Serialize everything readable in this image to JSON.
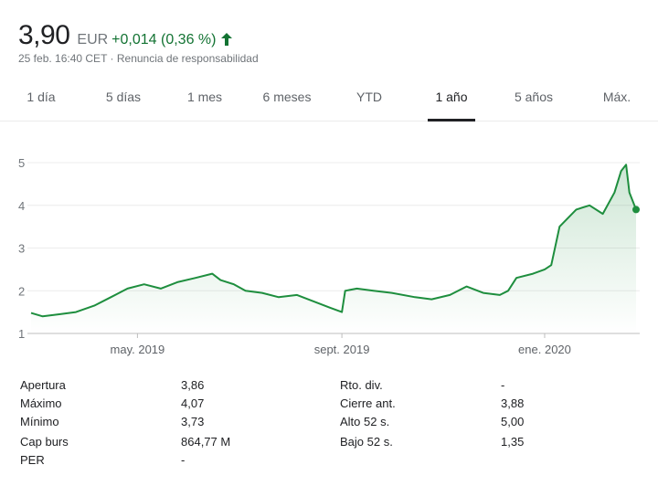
{
  "quote": {
    "price": "3,90",
    "currency": "EUR",
    "change": "+0,014 (0,36 %)",
    "timestamp": "25 feb. 16:40 CET",
    "separator": " · ",
    "disclaimer": "Renuncia de responsabilidad",
    "positive_color": "#137333"
  },
  "tabs": [
    {
      "label": "1 día"
    },
    {
      "label": "5 días"
    },
    {
      "label": "1 mes"
    },
    {
      "label": "6 meses"
    },
    {
      "label": "YTD"
    },
    {
      "label": "1 año",
      "active": true
    },
    {
      "label": "5 años"
    },
    {
      "label": "Máx."
    }
  ],
  "chart_data": {
    "type": "area",
    "ylim": [
      1,
      5
    ],
    "yticks": [
      "1",
      "2",
      "3",
      "4",
      "5"
    ],
    "xtick_labels": [
      "may. 2019",
      "sept. 2019",
      "ene. 2020"
    ],
    "line_color": "#1e8e3e",
    "grid": true,
    "series": [
      {
        "x": [
          "2019-02-26",
          "2019-03-05",
          "2019-03-15",
          "2019-03-25",
          "2019-04-05",
          "2019-04-15",
          "2019-04-25",
          "2019-05-05",
          "2019-05-15",
          "2019-05-25",
          "2019-06-05",
          "2019-06-15",
          "2019-06-20",
          "2019-06-28",
          "2019-07-05",
          "2019-07-15",
          "2019-07-25",
          "2019-08-05",
          "2019-08-15",
          "2019-08-25",
          "2019-09-01",
          "2019-09-03",
          "2019-09-10",
          "2019-09-20",
          "2019-10-01",
          "2019-10-15",
          "2019-10-25",
          "2019-11-05",
          "2019-11-15",
          "2019-11-25",
          "2019-12-05",
          "2019-12-10",
          "2019-12-15",
          "2019-12-25",
          "2020-01-01",
          "2020-01-05",
          "2020-01-10",
          "2020-01-20",
          "2020-01-28",
          "2020-02-05",
          "2020-02-12",
          "2020-02-16",
          "2020-02-19",
          "2020-02-21",
          "2020-02-25"
        ],
        "values": [
          1.48,
          1.4,
          1.45,
          1.5,
          1.65,
          1.85,
          2.05,
          2.15,
          2.05,
          2.2,
          2.3,
          2.4,
          2.25,
          2.15,
          2.0,
          1.95,
          1.85,
          1.9,
          1.75,
          1.6,
          1.5,
          2.0,
          2.05,
          2.0,
          1.95,
          1.85,
          1.8,
          1.9,
          2.1,
          1.95,
          1.9,
          2.0,
          2.3,
          2.4,
          2.5,
          2.6,
          3.5,
          3.9,
          4.0,
          3.8,
          4.3,
          4.8,
          4.95,
          4.3,
          3.9
        ]
      }
    ]
  },
  "stats": {
    "left": [
      {
        "label": "Apertura",
        "value": "3,86"
      },
      {
        "label": "Máximo",
        "value": "4,07"
      },
      {
        "label": "Mínimo",
        "value": "3,73"
      },
      {
        "label": "Cap burs",
        "value": "864,77 M"
      },
      {
        "label": "PER",
        "value": "-"
      }
    ],
    "right": [
      {
        "label": "Rto. div.",
        "value": "-"
      },
      {
        "label": "Cierre ant.",
        "value": "3,88"
      },
      {
        "label": "Alto 52 s.",
        "value": "5,00"
      },
      {
        "label": "Bajo 52 s.",
        "value": "1,35"
      }
    ]
  }
}
